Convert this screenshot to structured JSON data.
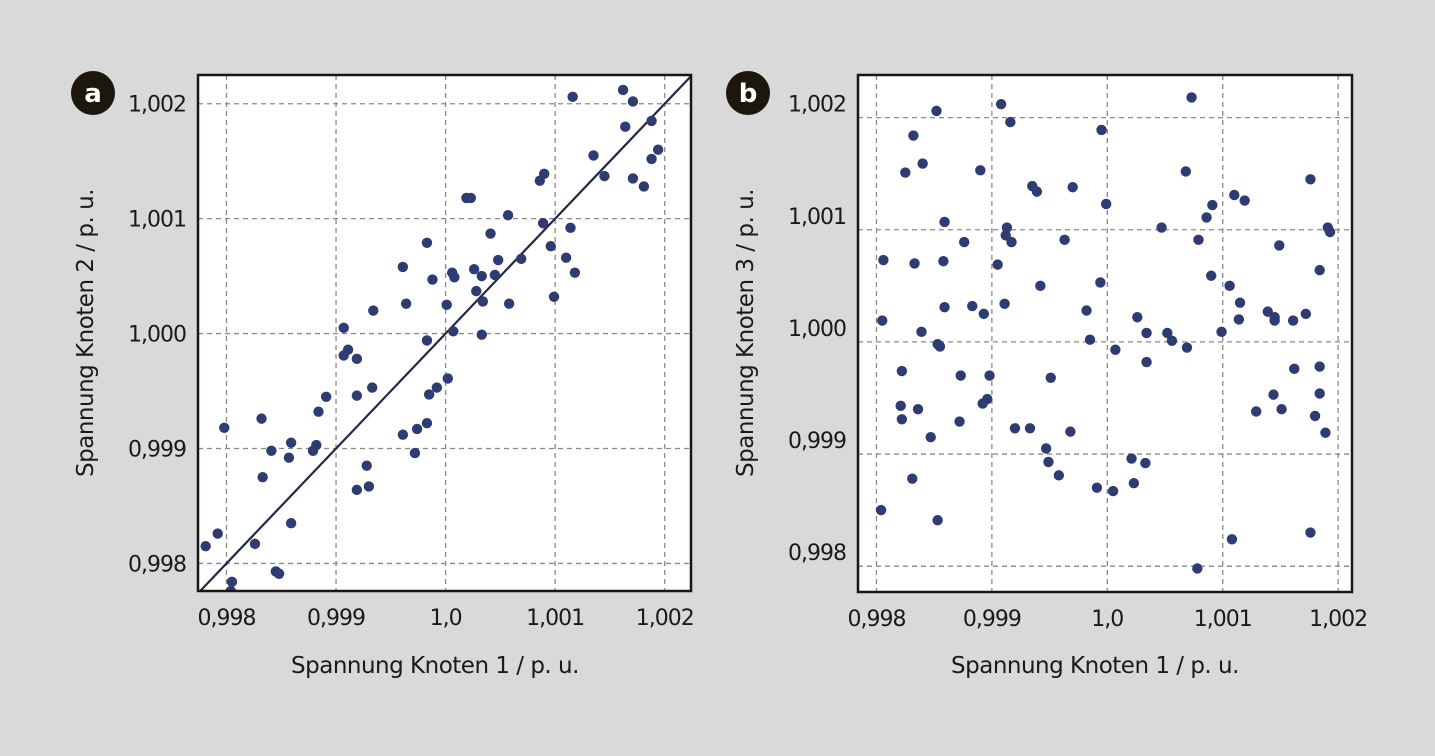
{
  "colors": {
    "background": "#d9d9d9",
    "plot_bg": "#ffffff",
    "points": "#2f3b73",
    "frame": "#1c160c",
    "grid": "#8a8a8a",
    "line": "#24264a",
    "badge": "#1c160c"
  },
  "chart_data": [
    {
      "panel": "a",
      "type": "scatter",
      "xlabel": "Spannung Knoten 1 / p. u.",
      "ylabel": "Spannung Knoten 2 / p. u.",
      "xlim": [
        0.99774,
        1.00224
      ],
      "ylim": [
        0.99776,
        1.00225
      ],
      "xticks": [
        0.998,
        0.999,
        1.0,
        1.001,
        1.002
      ],
      "xtick_labels": [
        "0,998",
        "0,999",
        "1,0",
        "1,001",
        "1,002"
      ],
      "yticks": [
        0.998,
        0.999,
        1.0,
        1.001,
        1.002
      ],
      "ytick_labels": [
        "0,998",
        "0,999",
        "1,000",
        "1,001",
        "1,002"
      ],
      "grid": true,
      "reference_line": "y = x",
      "points": [
        [
          1.00116,
          1.00206
        ],
        [
          1.00162,
          1.00212
        ],
        [
          1.00171,
          1.00202
        ],
        [
          1.00164,
          1.0018
        ],
        [
          1.00188,
          1.00185
        ],
        [
          1.00135,
          1.00155
        ],
        [
          1.00194,
          1.0016
        ],
        [
          1.00188,
          1.00152
        ],
        [
          1.00145,
          1.00137
        ],
        [
          1.00171,
          1.00135
        ],
        [
          1.00181,
          1.00128
        ],
        [
          1.0009,
          1.00139
        ],
        [
          1.00086,
          1.00133
        ],
        [
          1.00019,
          1.00118
        ],
        [
          1.00023,
          1.00118
        ],
        [
          1.00057,
          1.00103
        ],
        [
          1.00089,
          1.00096
        ],
        [
          1.00114,
          1.00092
        ],
        [
          1.00041,
          1.00087
        ],
        [
          0.99983,
          1.00079
        ],
        [
          1.00096,
          1.00076
        ],
        [
          1.00048,
          1.00064
        ],
        [
          1.00069,
          1.00065
        ],
        [
          1.0011,
          1.00066
        ],
        [
          1.00118,
          1.00053
        ],
        [
          0.99961,
          1.00058
        ],
        [
          1.00006,
          1.00053
        ],
        [
          1.00008,
          1.00049
        ],
        [
          1.00026,
          1.00056
        ],
        [
          1.00033,
          1.0005
        ],
        [
          1.00045,
          1.00051
        ],
        [
          0.99988,
          1.00047
        ],
        [
          1.00028,
          1.00037
        ],
        [
          1.00034,
          1.00028
        ],
        [
          1.00058,
          1.00026
        ],
        [
          1.00099,
          1.00032
        ],
        [
          0.99964,
          1.00026
        ],
        [
          0.99934,
          1.0002
        ],
        [
          1.00001,
          1.00025
        ],
        [
          0.99907,
          1.00005
        ],
        [
          1.00007,
          1.00002
        ],
        [
          1.00033,
          0.99999
        ],
        [
          0.99983,
          0.99994
        ],
        [
          0.99911,
          0.99986
        ],
        [
          0.99907,
          0.99981
        ],
        [
          0.99919,
          0.99978
        ],
        [
          1.00002,
          0.99961
        ],
        [
          0.99933,
          0.99953
        ],
        [
          0.99992,
          0.99953
        ],
        [
          0.99919,
          0.99946
        ],
        [
          0.99985,
          0.99947
        ],
        [
          0.99891,
          0.99945
        ],
        [
          0.99884,
          0.99932
        ],
        [
          0.99832,
          0.99926
        ],
        [
          0.99798,
          0.99918
        ],
        [
          0.99983,
          0.99922
        ],
        [
          0.99974,
          0.99917
        ],
        [
          0.99961,
          0.99912
        ],
        [
          0.99859,
          0.99905
        ],
        [
          0.99882,
          0.99903
        ],
        [
          0.99879,
          0.99898
        ],
        [
          0.99841,
          0.99898
        ],
        [
          0.99857,
          0.99892
        ],
        [
          0.99972,
          0.99896
        ],
        [
          0.99928,
          0.99885
        ],
        [
          0.99833,
          0.99875
        ],
        [
          0.9993,
          0.99867
        ],
        [
          0.99919,
          0.99864
        ],
        [
          0.99859,
          0.99835
        ],
        [
          0.99792,
          0.99826
        ],
        [
          0.99781,
          0.99815
        ],
        [
          0.99826,
          0.99817
        ],
        [
          0.99845,
          0.99793
        ],
        [
          0.99848,
          0.99791
        ],
        [
          0.99805,
          0.99784
        ],
        [
          0.99804,
          0.99776
        ]
      ]
    },
    {
      "panel": "b",
      "type": "scatter",
      "xlabel": "Spannung Knoten 1 / p. u.",
      "ylabel": "Spannung Knoten 3 / p. u.",
      "xlim": [
        0.99784,
        1.00212
      ],
      "ylim": [
        0.99777,
        1.00238
      ],
      "xticks": [
        0.998,
        0.999,
        1.0,
        1.001,
        1.002
      ],
      "xtick_labels": [
        "0,998",
        "0,999",
        "1,0",
        "1,001",
        "1,002"
      ],
      "yticks": [
        0.998,
        0.999,
        1.0,
        1.001,
        1.002
      ],
      "ytick_labels": [
        "0,998",
        "0,999",
        "1,000",
        "1,001",
        "1,002"
      ],
      "grid": true,
      "points": [
        [
          1.00073,
          1.00218
        ],
        [
          0.99908,
          1.00212
        ],
        [
          0.99852,
          1.00206
        ],
        [
          0.99916,
          1.00196
        ],
        [
          0.99995,
          1.00189
        ],
        [
          0.99832,
          1.00184
        ],
        [
          0.9984,
          1.00159
        ],
        [
          0.99825,
          1.00151
        ],
        [
          0.9989,
          1.00153
        ],
        [
          1.00068,
          1.00152
        ],
        [
          1.00176,
          1.00145
        ],
        [
          0.99935,
          1.00139
        ],
        [
          0.99939,
          1.00134
        ],
        [
          0.9997,
          1.00138
        ],
        [
          1.0011,
          1.00131
        ],
        [
          1.00119,
          1.00126
        ],
        [
          0.99999,
          1.00123
        ],
        [
          1.00091,
          1.00122
        ],
        [
          1.00086,
          1.00111
        ],
        [
          0.99859,
          1.00107
        ],
        [
          0.99913,
          1.00102
        ],
        [
          1.00047,
          1.00102
        ],
        [
          1.00191,
          1.00102
        ],
        [
          1.00193,
          1.00098
        ],
        [
          0.99912,
          1.00095
        ],
        [
          0.99917,
          1.00089
        ],
        [
          0.99876,
          1.00089
        ],
        [
          0.99963,
          1.00091
        ],
        [
          1.00079,
          1.00091
        ],
        [
          1.00149,
          1.00086
        ],
        [
          0.99806,
          1.00073
        ],
        [
          0.99833,
          1.0007
        ],
        [
          0.99858,
          1.00072
        ],
        [
          0.99905,
          1.00069
        ],
        [
          1.00184,
          1.00064
        ],
        [
          1.0009,
          1.00059
        ],
        [
          0.99994,
          1.00053
        ],
        [
          0.99942,
          1.0005
        ],
        [
          1.00106,
          1.0005
        ],
        [
          0.99911,
          1.00034
        ],
        [
          0.99859,
          1.00031
        ],
        [
          0.99883,
          1.00032
        ],
        [
          0.99893,
          1.00025
        ],
        [
          1.00115,
          1.00035
        ],
        [
          0.99982,
          1.00028
        ],
        [
          1.00139,
          1.00027
        ],
        [
          1.00145,
          1.00022
        ],
        [
          1.00145,
          1.00019
        ],
        [
          1.00172,
          1.00025
        ],
        [
          1.00161,
          1.00019
        ],
        [
          1.00026,
          1.00022
        ],
        [
          0.99805,
          1.00019
        ],
        [
          1.00114,
          1.0002
        ],
        [
          0.99839,
          1.00009
        ],
        [
          1.00034,
          1.00008
        ],
        [
          1.00052,
          1.00008
        ],
        [
          1.00099,
          1.00009
        ],
        [
          0.99985,
          1.00002
        ],
        [
          1.00056,
          1.00001
        ],
        [
          0.99853,
          0.99998
        ],
        [
          0.99855,
          0.99996
        ],
        [
          1.00007,
          0.99993
        ],
        [
          1.00069,
          0.99995
        ],
        [
          1.00034,
          0.99982
        ],
        [
          0.99822,
          0.99974
        ],
        [
          0.99873,
          0.9997
        ],
        [
          0.99898,
          0.9997
        ],
        [
          0.99951,
          0.99968
        ],
        [
          1.00162,
          0.99976
        ],
        [
          1.00184,
          0.99978
        ],
        [
          0.99821,
          0.99943
        ],
        [
          0.99836,
          0.9994
        ],
        [
          0.99822,
          0.99931
        ],
        [
          0.99892,
          0.99945
        ],
        [
          0.99896,
          0.99949
        ],
        [
          0.99872,
          0.99929
        ],
        [
          0.99847,
          0.99915
        ],
        [
          0.9992,
          0.99923
        ],
        [
          0.99933,
          0.99923
        ],
        [
          0.99968,
          0.9992
        ],
        [
          1.00144,
          0.99953
        ],
        [
          1.00184,
          0.99954
        ],
        [
          1.00129,
          0.99938
        ],
        [
          1.00151,
          0.9994
        ],
        [
          1.0018,
          0.99934
        ],
        [
          1.00189,
          0.99919
        ],
        [
          0.99947,
          0.99905
        ],
        [
          0.99949,
          0.99893
        ],
        [
          0.99958,
          0.99881
        ],
        [
          1.00021,
          0.99896
        ],
        [
          1.00033,
          0.99892
        ],
        [
          1.00023,
          0.99874
        ],
        [
          0.99991,
          0.9987
        ],
        [
          1.00005,
          0.99867
        ],
        [
          0.99831,
          0.99878
        ],
        [
          0.99804,
          0.9985
        ],
        [
          0.99853,
          0.99841
        ],
        [
          1.00108,
          0.99824
        ],
        [
          1.00176,
          0.9983
        ],
        [
          1.00078,
          0.99798
        ]
      ]
    }
  ]
}
